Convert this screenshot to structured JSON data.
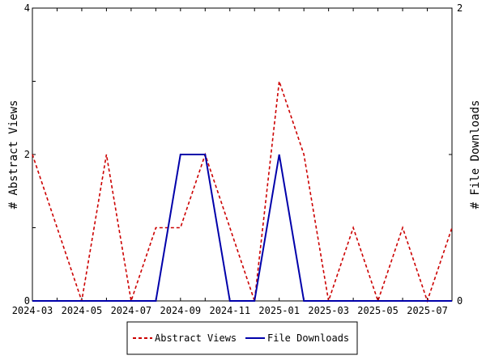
{
  "chart_data": {
    "type": "line",
    "x": [
      "2024-03",
      "2024-04",
      "2024-05",
      "2024-06",
      "2024-07",
      "2024-08",
      "2024-09",
      "2024-10",
      "2024-11",
      "2024-12",
      "2025-01",
      "2025-02",
      "2025-03",
      "2025-04",
      "2025-05",
      "2025-06",
      "2025-07",
      "2025-08"
    ],
    "x_tick_labels": [
      "2024-03",
      "2024-05",
      "2024-07",
      "2024-09",
      "2024-11",
      "2025-01",
      "2025-03",
      "2025-05",
      "2025-07"
    ],
    "series": [
      {
        "name": "Abstract Views",
        "axis": "left",
        "color": "#cc0000",
        "dash": "dashed",
        "values": [
          2,
          1,
          0,
          2,
          0,
          1,
          1,
          2,
          1,
          0,
          3,
          2,
          0,
          1,
          0,
          1,
          0,
          1
        ]
      },
      {
        "name": "File Downloads",
        "axis": "right",
        "color": "#0000aa",
        "dash": "solid",
        "values": [
          0,
          0,
          0,
          0,
          0,
          0,
          1,
          1,
          0,
          0,
          1,
          0,
          0,
          0,
          0,
          0,
          0,
          0
        ]
      }
    ],
    "ylabel": "# Abstract Views",
    "y2label": "# File Downloads",
    "ylim": [
      0,
      4
    ],
    "y_ticks": [
      "0",
      "2",
      "4"
    ],
    "y2lim": [
      0,
      2
    ],
    "y2_ticks": [
      "0",
      "2"
    ],
    "grid": false,
    "legend_position": "bottom"
  }
}
